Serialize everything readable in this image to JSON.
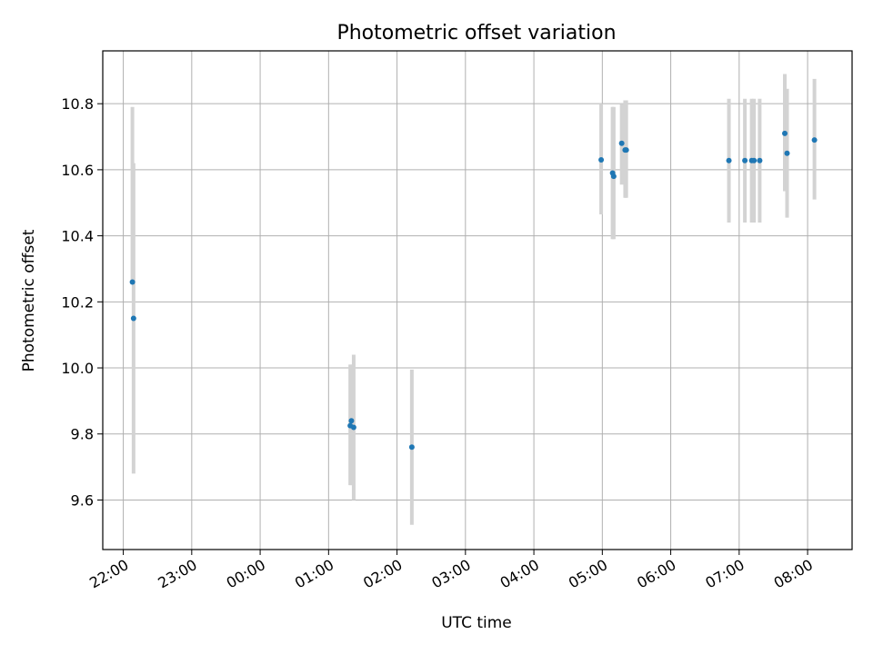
{
  "chart_data": {
    "type": "scatter",
    "title": "Photometric offset variation",
    "xlabel": "UTC time",
    "ylabel": "Photometric offset",
    "x_axis_kind": "time",
    "x_start": "21:42",
    "xlim_hours": [
      21.7,
      32.65
    ],
    "ylim": [
      9.45,
      10.96
    ],
    "grid": true,
    "x_ticks": [
      "22:00",
      "23:00",
      "00:00",
      "01:00",
      "02:00",
      "03:00",
      "04:00",
      "05:00",
      "06:00",
      "07:00",
      "08:00"
    ],
    "y_ticks": [
      "9.6",
      "9.8",
      "10.0",
      "10.2",
      "10.4",
      "10.6",
      "10.8"
    ],
    "y_tick_values": [
      9.6,
      9.8,
      10.0,
      10.2,
      10.4,
      10.6,
      10.8
    ],
    "series": [
      {
        "color": "#1f77b4",
        "error_color": "#d3d3d3",
        "points": [
          {
            "t": "22:08",
            "y": 10.26,
            "ylow": 10.26,
            "yhigh": 10.79
          },
          {
            "t": "22:09",
            "y": 10.15,
            "ylow": 9.68,
            "yhigh": 10.62
          },
          {
            "t": "01:19",
            "y": 9.825,
            "ylow": 9.645,
            "yhigh": 10.01
          },
          {
            "t": "01:20",
            "y": 9.84,
            "ylow": 9.645,
            "yhigh": 10.01
          },
          {
            "t": "01:22",
            "y": 9.82,
            "ylow": 9.6,
            "yhigh": 10.04
          },
          {
            "t": "02:13",
            "y": 9.76,
            "ylow": 9.525,
            "yhigh": 9.995
          },
          {
            "t": "04:59",
            "y": 10.63,
            "ylow": 10.465,
            "yhigh": 10.8
          },
          {
            "t": "05:09",
            "y": 10.59,
            "ylow": 10.39,
            "yhigh": 10.79
          },
          {
            "t": "05:10",
            "y": 10.58,
            "ylow": 10.39,
            "yhigh": 10.79
          },
          {
            "t": "05:17",
            "y": 10.68,
            "ylow": 10.555,
            "yhigh": 10.8
          },
          {
            "t": "05:20",
            "y": 10.66,
            "ylow": 10.515,
            "yhigh": 10.81
          },
          {
            "t": "05:21",
            "y": 10.66,
            "ylow": 10.515,
            "yhigh": 10.81
          },
          {
            "t": "06:51",
            "y": 10.628,
            "ylow": 10.44,
            "yhigh": 10.815
          },
          {
            "t": "07:05",
            "y": 10.628,
            "ylow": 10.44,
            "yhigh": 10.815
          },
          {
            "t": "07:11",
            "y": 10.628,
            "ylow": 10.44,
            "yhigh": 10.815
          },
          {
            "t": "07:13",
            "y": 10.628,
            "ylow": 10.44,
            "yhigh": 10.815
          },
          {
            "t": "07:18",
            "y": 10.628,
            "ylow": 10.44,
            "yhigh": 10.815
          },
          {
            "t": "07:40",
            "y": 10.71,
            "ylow": 10.535,
            "yhigh": 10.89
          },
          {
            "t": "07:42",
            "y": 10.65,
            "ylow": 10.455,
            "yhigh": 10.845
          },
          {
            "t": "08:06",
            "y": 10.69,
            "ylow": 10.51,
            "yhigh": 10.875
          }
        ]
      }
    ]
  }
}
